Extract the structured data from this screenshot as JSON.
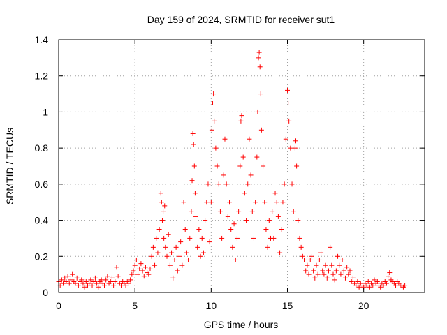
{
  "chart_data": {
    "type": "scatter",
    "title": "Day 159 of 2024, SRMTID for receiver sut1",
    "xlabel": "GPS time / hours",
    "ylabel": "SRMTID / TECUs",
    "xlim": [
      0,
      24
    ],
    "ylim": [
      0,
      1.4
    ],
    "xticks": [
      0,
      5,
      10,
      15,
      20
    ],
    "xtick_labels": [
      "0",
      "5",
      "10",
      "15",
      "20"
    ],
    "yticks": [
      0,
      0.2,
      0.4,
      0.6,
      0.8,
      1.0,
      1.2,
      1.4
    ],
    "ytick_labels": [
      "0",
      "0.2",
      "0.4",
      "0.6",
      "0.8",
      "1",
      "1.2",
      "1.4"
    ],
    "grid": true,
    "marker": "+",
    "series": [
      {
        "name": "SRMTID",
        "color": "#ff0000",
        "points": [
          [
            0.0,
            0.06
          ],
          [
            0.1,
            0.04
          ],
          [
            0.2,
            0.07
          ],
          [
            0.3,
            0.05
          ],
          [
            0.4,
            0.08
          ],
          [
            0.5,
            0.06
          ],
          [
            0.6,
            0.09
          ],
          [
            0.7,
            0.05
          ],
          [
            0.8,
            0.07
          ],
          [
            0.9,
            0.1
          ],
          [
            1.0,
            0.06
          ],
          [
            1.1,
            0.05
          ],
          [
            1.2,
            0.08
          ],
          [
            1.3,
            0.04
          ],
          [
            1.4,
            0.06
          ],
          [
            1.5,
            0.07
          ],
          [
            1.6,
            0.05
          ],
          [
            1.7,
            0.03
          ],
          [
            1.8,
            0.06
          ],
          [
            1.9,
            0.04
          ],
          [
            2.0,
            0.05
          ],
          [
            2.1,
            0.07
          ],
          [
            2.2,
            0.04
          ],
          [
            2.3,
            0.06
          ],
          [
            2.4,
            0.08
          ],
          [
            2.5,
            0.05
          ],
          [
            2.6,
            0.03
          ],
          [
            2.7,
            0.06
          ],
          [
            2.8,
            0.07
          ],
          [
            2.9,
            0.05
          ],
          [
            3.0,
            0.04
          ],
          [
            3.1,
            0.07
          ],
          [
            3.2,
            0.09
          ],
          [
            3.3,
            0.05
          ],
          [
            3.4,
            0.06
          ],
          [
            3.5,
            0.08
          ],
          [
            3.6,
            0.04
          ],
          [
            3.7,
            0.06
          ],
          [
            3.8,
            0.14
          ],
          [
            3.9,
            0.09
          ],
          [
            4.0,
            0.05
          ],
          [
            4.1,
            0.04
          ],
          [
            4.2,
            0.06
          ],
          [
            4.3,
            0.05
          ],
          [
            4.4,
            0.04
          ],
          [
            4.5,
            0.06
          ],
          [
            4.6,
            0.05
          ],
          [
            4.7,
            0.07
          ],
          [
            4.8,
            0.1
          ],
          [
            4.9,
            0.12
          ],
          [
            5.0,
            0.15
          ],
          [
            5.1,
            0.18
          ],
          [
            5.2,
            0.1
          ],
          [
            5.3,
            0.13
          ],
          [
            5.4,
            0.16
          ],
          [
            5.5,
            0.12
          ],
          [
            5.6,
            0.09
          ],
          [
            5.7,
            0.14
          ],
          [
            5.8,
            0.11
          ],
          [
            5.9,
            0.1
          ],
          [
            6.0,
            0.13
          ],
          [
            6.1,
            0.2
          ],
          [
            6.2,
            0.25
          ],
          [
            6.3,
            0.15
          ],
          [
            6.4,
            0.3
          ],
          [
            6.5,
            0.22
          ],
          [
            6.6,
            0.35
          ],
          [
            6.7,
            0.55
          ],
          [
            6.75,
            0.5
          ],
          [
            6.8,
            0.4
          ],
          [
            6.85,
            0.45
          ],
          [
            6.9,
            0.3
          ],
          [
            6.95,
            0.48
          ],
          [
            7.0,
            0.25
          ],
          [
            7.1,
            0.2
          ],
          [
            7.2,
            0.32
          ],
          [
            7.3,
            0.15
          ],
          [
            7.4,
            0.22
          ],
          [
            7.5,
            0.08
          ],
          [
            7.6,
            0.18
          ],
          [
            7.7,
            0.25
          ],
          [
            7.8,
            0.12
          ],
          [
            7.9,
            0.2
          ],
          [
            8.0,
            0.28
          ],
          [
            8.1,
            0.15
          ],
          [
            8.2,
            0.5
          ],
          [
            8.3,
            0.35
          ],
          [
            8.4,
            0.22
          ],
          [
            8.5,
            0.18
          ],
          [
            8.6,
            0.3
          ],
          [
            8.7,
            0.45
          ],
          [
            8.75,
            0.62
          ],
          [
            8.8,
            0.88
          ],
          [
            8.85,
            0.82
          ],
          [
            8.9,
            0.7
          ],
          [
            8.95,
            0.55
          ],
          [
            9.0,
            0.42
          ],
          [
            9.1,
            0.25
          ],
          [
            9.2,
            0.35
          ],
          [
            9.3,
            0.2
          ],
          [
            9.4,
            0.3
          ],
          [
            9.5,
            0.22
          ],
          [
            9.6,
            0.4
          ],
          [
            9.7,
            0.5
          ],
          [
            9.8,
            0.6
          ],
          [
            9.9,
            0.28
          ],
          [
            10.0,
            0.5
          ],
          [
            10.05,
            0.9
          ],
          [
            10.1,
            1.05
          ],
          [
            10.15,
            1.1
          ],
          [
            10.2,
            0.95
          ],
          [
            10.3,
            0.8
          ],
          [
            10.4,
            0.7
          ],
          [
            10.5,
            0.6
          ],
          [
            10.6,
            0.45
          ],
          [
            10.7,
            0.3
          ],
          [
            10.8,
            0.65
          ],
          [
            10.9,
            0.85
          ],
          [
            11.0,
            0.6
          ],
          [
            11.1,
            0.42
          ],
          [
            11.2,
            0.5
          ],
          [
            11.3,
            0.35
          ],
          [
            11.4,
            0.25
          ],
          [
            11.5,
            0.38
          ],
          [
            11.6,
            0.18
          ],
          [
            11.7,
            0.3
          ],
          [
            11.8,
            0.45
          ],
          [
            11.9,
            0.7
          ],
          [
            11.95,
            0.95
          ],
          [
            12.0,
            0.98
          ],
          [
            12.1,
            0.75
          ],
          [
            12.2,
            0.55
          ],
          [
            12.3,
            0.4
          ],
          [
            12.4,
            0.6
          ],
          [
            12.5,
            0.85
          ],
          [
            12.6,
            0.65
          ],
          [
            12.7,
            0.45
          ],
          [
            12.8,
            0.3
          ],
          [
            12.9,
            0.5
          ],
          [
            13.0,
            0.75
          ],
          [
            13.05,
            1.0
          ],
          [
            13.1,
            1.3
          ],
          [
            13.15,
            1.33
          ],
          [
            13.2,
            1.25
          ],
          [
            13.25,
            1.1
          ],
          [
            13.3,
            0.9
          ],
          [
            13.4,
            0.7
          ],
          [
            13.5,
            0.5
          ],
          [
            13.6,
            0.35
          ],
          [
            13.7,
            0.25
          ],
          [
            13.8,
            0.4
          ],
          [
            13.9,
            0.3
          ],
          [
            14.0,
            0.45
          ],
          [
            14.1,
            0.3
          ],
          [
            14.2,
            0.55
          ],
          [
            14.3,
            0.5
          ],
          [
            14.4,
            0.42
          ],
          [
            14.5,
            0.22
          ],
          [
            14.6,
            0.35
          ],
          [
            14.7,
            0.5
          ],
          [
            14.8,
            0.6
          ],
          [
            14.9,
            0.85
          ],
          [
            15.0,
            1.12
          ],
          [
            15.05,
            1.05
          ],
          [
            15.1,
            0.95
          ],
          [
            15.2,
            0.8
          ],
          [
            15.3,
            0.6
          ],
          [
            15.4,
            0.45
          ],
          [
            15.5,
            0.8
          ],
          [
            15.55,
            0.84
          ],
          [
            15.6,
            0.7
          ],
          [
            15.7,
            0.4
          ],
          [
            15.8,
            0.3
          ],
          [
            15.9,
            0.25
          ],
          [
            16.0,
            0.2
          ],
          [
            16.1,
            0.18
          ],
          [
            16.2,
            0.12
          ],
          [
            16.3,
            0.15
          ],
          [
            16.4,
            0.1
          ],
          [
            16.5,
            0.18
          ],
          [
            16.6,
            0.2
          ],
          [
            16.7,
            0.12
          ],
          [
            16.8,
            0.08
          ],
          [
            16.9,
            0.15
          ],
          [
            17.0,
            0.1
          ],
          [
            17.1,
            0.18
          ],
          [
            17.2,
            0.22
          ],
          [
            17.3,
            0.12
          ],
          [
            17.4,
            0.1
          ],
          [
            17.5,
            0.15
          ],
          [
            17.6,
            0.08
          ],
          [
            17.7,
            0.12
          ],
          [
            17.8,
            0.25
          ],
          [
            17.9,
            0.15
          ],
          [
            18.0,
            0.1
          ],
          [
            18.1,
            0.07
          ],
          [
            18.2,
            0.12
          ],
          [
            18.3,
            0.2
          ],
          [
            18.4,
            0.15
          ],
          [
            18.5,
            0.1
          ],
          [
            18.6,
            0.18
          ],
          [
            18.7,
            0.12
          ],
          [
            18.8,
            0.08
          ],
          [
            18.9,
            0.14
          ],
          [
            19.0,
            0.1
          ],
          [
            19.1,
            0.12
          ],
          [
            19.2,
            0.06
          ],
          [
            19.3,
            0.08
          ],
          [
            19.4,
            0.05
          ],
          [
            19.5,
            0.04
          ],
          [
            19.6,
            0.06
          ],
          [
            19.7,
            0.03
          ],
          [
            19.8,
            0.05
          ],
          [
            19.9,
            0.04
          ],
          [
            20.0,
            0.03
          ],
          [
            20.1,
            0.05
          ],
          [
            20.2,
            0.04
          ],
          [
            20.3,
            0.06
          ],
          [
            20.4,
            0.03
          ],
          [
            20.5,
            0.05
          ],
          [
            20.6,
            0.04
          ],
          [
            20.7,
            0.07
          ],
          [
            20.8,
            0.05
          ],
          [
            20.9,
            0.06
          ],
          [
            21.0,
            0.04
          ],
          [
            21.1,
            0.03
          ],
          [
            21.2,
            0.05
          ],
          [
            21.3,
            0.04
          ],
          [
            21.4,
            0.06
          ],
          [
            21.5,
            0.05
          ],
          [
            21.6,
            0.09
          ],
          [
            21.7,
            0.11
          ],
          [
            21.8,
            0.07
          ],
          [
            21.9,
            0.06
          ],
          [
            22.0,
            0.05
          ],
          [
            22.1,
            0.04
          ],
          [
            22.2,
            0.06
          ],
          [
            22.3,
            0.05
          ],
          [
            22.4,
            0.04
          ],
          [
            22.5,
            0.04
          ],
          [
            22.6,
            0.03
          ],
          [
            22.7,
            0.04
          ]
        ]
      }
    ]
  }
}
